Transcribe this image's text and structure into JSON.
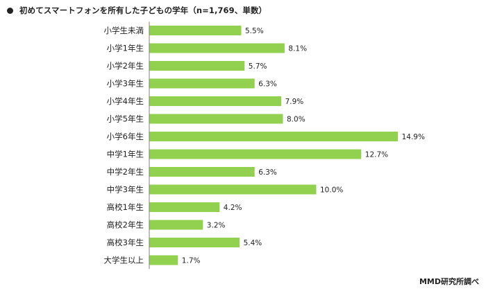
{
  "title": "初めてスマートフォンを所有した子どもの学年（n=1,769、単数）",
  "source": "MMD研究所調べ",
  "colors": {
    "bar": "#92d050",
    "axis": "#7f7f7f",
    "text": "#222222"
  },
  "chart_data": {
    "type": "bar",
    "orientation": "horizontal",
    "title": "初めてスマートフォンを所有した子どもの学年（n=1,769、単数）",
    "categories": [
      "小学生未満",
      "小学1年生",
      "小学2年生",
      "小学3年生",
      "小学4年生",
      "小学5年生",
      "小学6年生",
      "中学1年生",
      "中学2年生",
      "中学3年生",
      "高校1年生",
      "高校2年生",
      "高校3年生",
      "大学生以上"
    ],
    "values": [
      5.5,
      8.1,
      5.7,
      6.3,
      7.9,
      8.0,
      14.9,
      12.7,
      6.3,
      10.0,
      4.2,
      3.2,
      5.4,
      1.7
    ],
    "value_labels": [
      "5.5%",
      "8.1%",
      "5.7%",
      "6.3%",
      "7.9%",
      "8.0%",
      "14.9%",
      "12.7%",
      "6.3%",
      "10.0%",
      "4.2%",
      "3.2%",
      "5.4%",
      "1.7%"
    ],
    "unit": "%",
    "xlim": [
      0,
      16
    ],
    "grid": false,
    "legend": "none"
  }
}
